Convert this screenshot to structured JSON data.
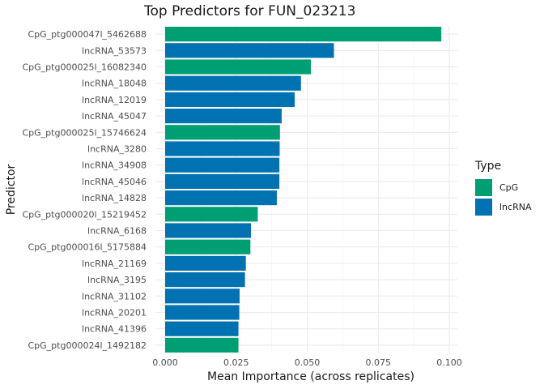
{
  "chart_data": {
    "type": "bar",
    "orientation": "horizontal",
    "title": "Top Predictors for FUN_023213",
    "xlabel": "Mean Importance (across replicates)",
    "ylabel": "Predictor",
    "xlim": [
      0,
      0.1
    ],
    "xticks": [
      "0.000",
      "0.025",
      "0.050",
      "0.075",
      "0.100"
    ],
    "xtick_values": [
      0,
      0.025,
      0.05,
      0.075,
      0.1
    ],
    "legend": {
      "title": "Type",
      "placement": "right",
      "entries": [
        {
          "name": "CpG",
          "color": "#009E73"
        },
        {
          "name": "lncRNA",
          "color": "#0072B2"
        }
      ]
    },
    "bars": [
      {
        "label": "CpG_ptg000047l_5462688",
        "value": 0.0972,
        "type": "CpG"
      },
      {
        "label": "lncRNA_53573",
        "value": 0.0594,
        "type": "lncRNA"
      },
      {
        "label": "CpG_ptg000025l_16082340",
        "value": 0.0513,
        "type": "CpG"
      },
      {
        "label": "lncRNA_18048",
        "value": 0.0478,
        "type": "lncRNA"
      },
      {
        "label": "lncRNA_12019",
        "value": 0.0456,
        "type": "lncRNA"
      },
      {
        "label": "lncRNA_45047",
        "value": 0.041,
        "type": "lncRNA"
      },
      {
        "label": "CpG_ptg000025l_15746624",
        "value": 0.0404,
        "type": "CpG"
      },
      {
        "label": "lncRNA_3280",
        "value": 0.0403,
        "type": "lncRNA"
      },
      {
        "label": "lncRNA_34908",
        "value": 0.0402,
        "type": "lncRNA"
      },
      {
        "label": "lncRNA_45046",
        "value": 0.0402,
        "type": "lncRNA"
      },
      {
        "label": "lncRNA_14828",
        "value": 0.0393,
        "type": "lncRNA"
      },
      {
        "label": "CpG_ptg000020l_15219452",
        "value": 0.0326,
        "type": "CpG"
      },
      {
        "label": "lncRNA_6168",
        "value": 0.0302,
        "type": "lncRNA"
      },
      {
        "label": "CpG_ptg000016l_5175884",
        "value": 0.03,
        "type": "CpG"
      },
      {
        "label": "lncRNA_21169",
        "value": 0.0284,
        "type": "lncRNA"
      },
      {
        "label": "lncRNA_3195",
        "value": 0.0281,
        "type": "lncRNA"
      },
      {
        "label": "lncRNA_31102",
        "value": 0.0262,
        "type": "lncRNA"
      },
      {
        "label": "lncRNA_20201",
        "value": 0.0261,
        "type": "lncRNA"
      },
      {
        "label": "lncRNA_41396",
        "value": 0.0258,
        "type": "lncRNA"
      },
      {
        "label": "CpG_ptg000024l_1492182",
        "value": 0.0258,
        "type": "CpG"
      }
    ]
  }
}
